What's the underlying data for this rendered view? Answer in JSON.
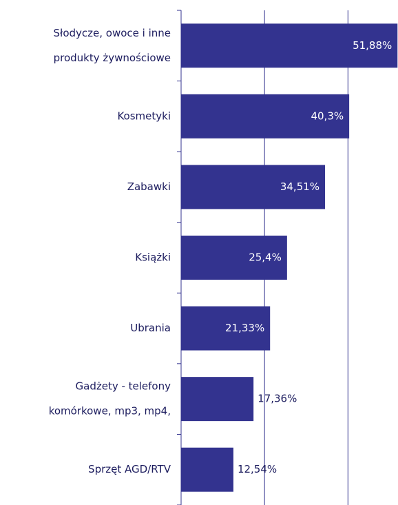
{
  "chart_data": {
    "type": "barh",
    "categories": [
      [
        "Słodycze, owoce i inne",
        "produkty żywnościowe"
      ],
      [
        "Kosmetyki"
      ],
      [
        "Zabawki"
      ],
      [
        "Książki"
      ],
      [
        "Ubrania"
      ],
      [
        "Gadżety - telefony",
        "komórkowe, mp3, mp4,"
      ],
      [
        "Sprzęt AGD/RTV"
      ]
    ],
    "values": [
      51.88,
      40.3,
      34.51,
      25.4,
      21.33,
      17.36,
      12.54
    ],
    "value_labels": [
      "51,88%",
      "40,3%",
      "34,51%",
      "25,4%",
      "21,33%",
      "17,36%",
      "12,54%"
    ],
    "color": "#33338f",
    "xlim": [
      0,
      52
    ],
    "xticks": [
      20,
      40
    ],
    "grid": true
  }
}
